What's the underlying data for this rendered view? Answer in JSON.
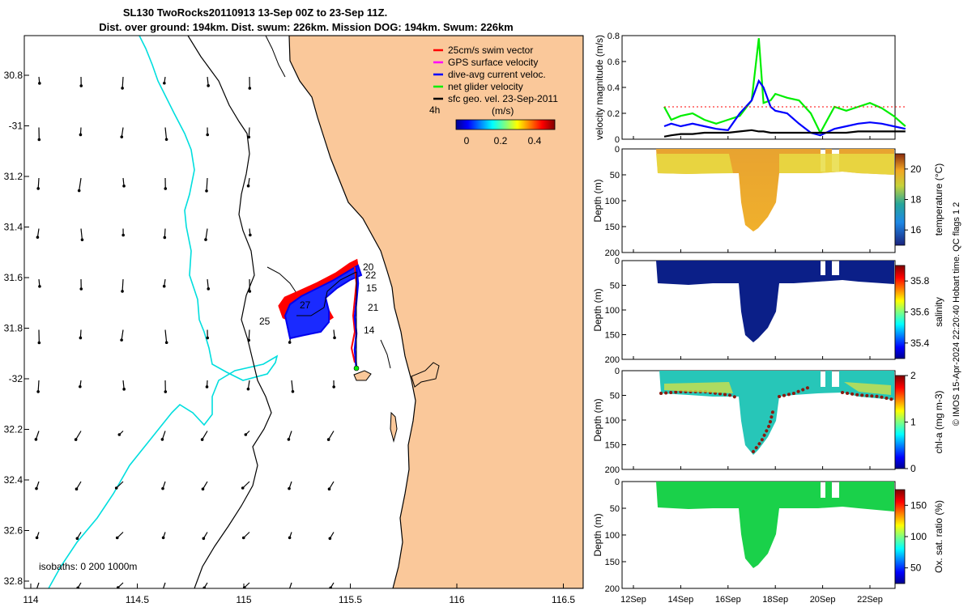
{
  "title_line1": "SL130 TwoRocks20110913 13-Sep 00Z to 23-Sep 11Z.",
  "title_line2": "Dist. over ground: 194km. Dist. swum: 226km. Mission DOG: 194km. Swum: 226km",
  "map": {
    "lon_ticks": [
      "114",
      "114.5",
      "115",
      "115.5",
      "116",
      "116.5"
    ],
    "lat_ticks": [
      "30.8",
      "-31",
      "31.2",
      "31.4",
      "31.6",
      "31.8",
      "-32",
      "32.2",
      "32.4",
      "32.6",
      "32.8"
    ],
    "legend": [
      {
        "label": "25cm/s swim vector",
        "color": "#ff0000"
      },
      {
        "label": "GPS surface velocity",
        "color": "#ff00ff"
      },
      {
        "label": "dive-avg current veloc.",
        "color": "#0000ff"
      },
      {
        "label": "net glider velocity",
        "color": "#00ee00"
      },
      {
        "label": "sfc geo. vel. 23-Sep-2011",
        "color": "#000000"
      }
    ],
    "colorbar_label": "(m/s)",
    "colorbar_ticks": [
      "0",
      "0.2",
      "0.4"
    ],
    "time_label": "4h",
    "isobaths_label": "isobaths: 0   200  1000m",
    "track_day_labels": [
      "20",
      "22",
      "15",
      "27",
      "21",
      "25",
      "14"
    ],
    "colors": {
      "land": "#fac89a",
      "isobath_1000": "#00e5e5",
      "isobath_200": "#000000"
    }
  },
  "chart_data": [
    {
      "type": "line",
      "ylabel": "velocity magnitude (m/s)",
      "ylim": [
        0,
        0.8
      ],
      "yticks": [
        "0",
        "0.2",
        "0.4",
        "0.6",
        "0.8"
      ],
      "x_days": [
        13.3,
        13.6,
        14,
        14.5,
        15,
        15.5,
        16,
        16.5,
        17,
        17.3,
        17.5,
        17.8,
        18,
        18.5,
        19,
        19.5,
        19.9,
        20.5,
        21,
        21.5,
        22,
        22.5,
        23,
        23.5
      ],
      "series": [
        {
          "name": "net glider velocity",
          "color": "#00ee00",
          "values": [
            0.25,
            0.15,
            0.18,
            0.2,
            0.15,
            0.12,
            0.15,
            0.18,
            0.3,
            0.78,
            0.28,
            0.3,
            0.35,
            0.32,
            0.3,
            0.2,
            0.05,
            0.25,
            0.22,
            0.25,
            0.28,
            0.24,
            0.18,
            0.1
          ]
        },
        {
          "name": "dive-avg current veloc.",
          "color": "#0000ff",
          "values": [
            0.1,
            0.12,
            0.1,
            0.12,
            0.1,
            0.08,
            0.07,
            0.2,
            0.3,
            0.45,
            0.4,
            0.25,
            0.22,
            0.2,
            0.12,
            0.05,
            0.03,
            0.08,
            0.1,
            0.12,
            0.13,
            0.12,
            0.1,
            0.08
          ]
        },
        {
          "name": "sfc geo. vel. 23-Sep-2011",
          "color": "#000000",
          "values": [
            0.02,
            0.03,
            0.04,
            0.04,
            0.05,
            0.05,
            0.05,
            0.06,
            0.07,
            0.06,
            0.06,
            0.05,
            0.05,
            0.05,
            0.05,
            0.05,
            0.05,
            0.05,
            0.05,
            0.06,
            0.06,
            0.06,
            0.06,
            0.06
          ]
        },
        {
          "name": "25cm/s swim vector",
          "color": "#ff0000",
          "values": [
            0.25,
            0.25,
            0.25,
            0.25,
            0.25,
            0.25,
            0.25,
            0.25,
            0.25,
            0.25,
            0.25,
            0.25,
            0.25,
            0.25,
            0.25,
            0.25,
            0.25,
            0.25,
            0.25,
            0.25,
            0.25,
            0.25,
            0.25,
            0.25
          ]
        }
      ]
    },
    {
      "type": "heatmap",
      "ylabel": "Depth (m)",
      "yticks": [
        "0",
        "50",
        "100",
        "150",
        "200"
      ],
      "colorbar_label": "temperature (°C)",
      "colorbar_ticks": [
        "16",
        "18",
        "20"
      ],
      "range": [
        15,
        21
      ]
    },
    {
      "type": "heatmap",
      "ylabel": "Depth (m)",
      "yticks": [
        "0",
        "50",
        "100",
        "150",
        "200"
      ],
      "colorbar_label": "salinity",
      "colorbar_ticks": [
        "35.4",
        "35.6",
        "35.8"
      ],
      "range": [
        35.3,
        35.9
      ]
    },
    {
      "type": "heatmap",
      "ylabel": "Depth (m)",
      "yticks": [
        "0",
        "50",
        "100",
        "150",
        "200"
      ],
      "colorbar_label": "chl-a (mg m-3)",
      "colorbar_ticks": [
        "0",
        "1",
        "2"
      ],
      "range": [
        0,
        2
      ]
    },
    {
      "type": "heatmap",
      "ylabel": "Depth (m)",
      "yticks": [
        "0",
        "50",
        "100",
        "150",
        "200"
      ],
      "colorbar_label": "Ox. sat. ratio (%)",
      "colorbar_ticks": [
        "50",
        "100",
        "150"
      ],
      "range": [
        25,
        175
      ],
      "xticks": [
        "12Sep",
        "14Sep",
        "16Sep",
        "18Sep",
        "20Sep",
        "22Sep"
      ]
    }
  ],
  "footer": "© IMOS 15-Apr-2024 22:20:40 Hobart time. QC flags 1  2"
}
